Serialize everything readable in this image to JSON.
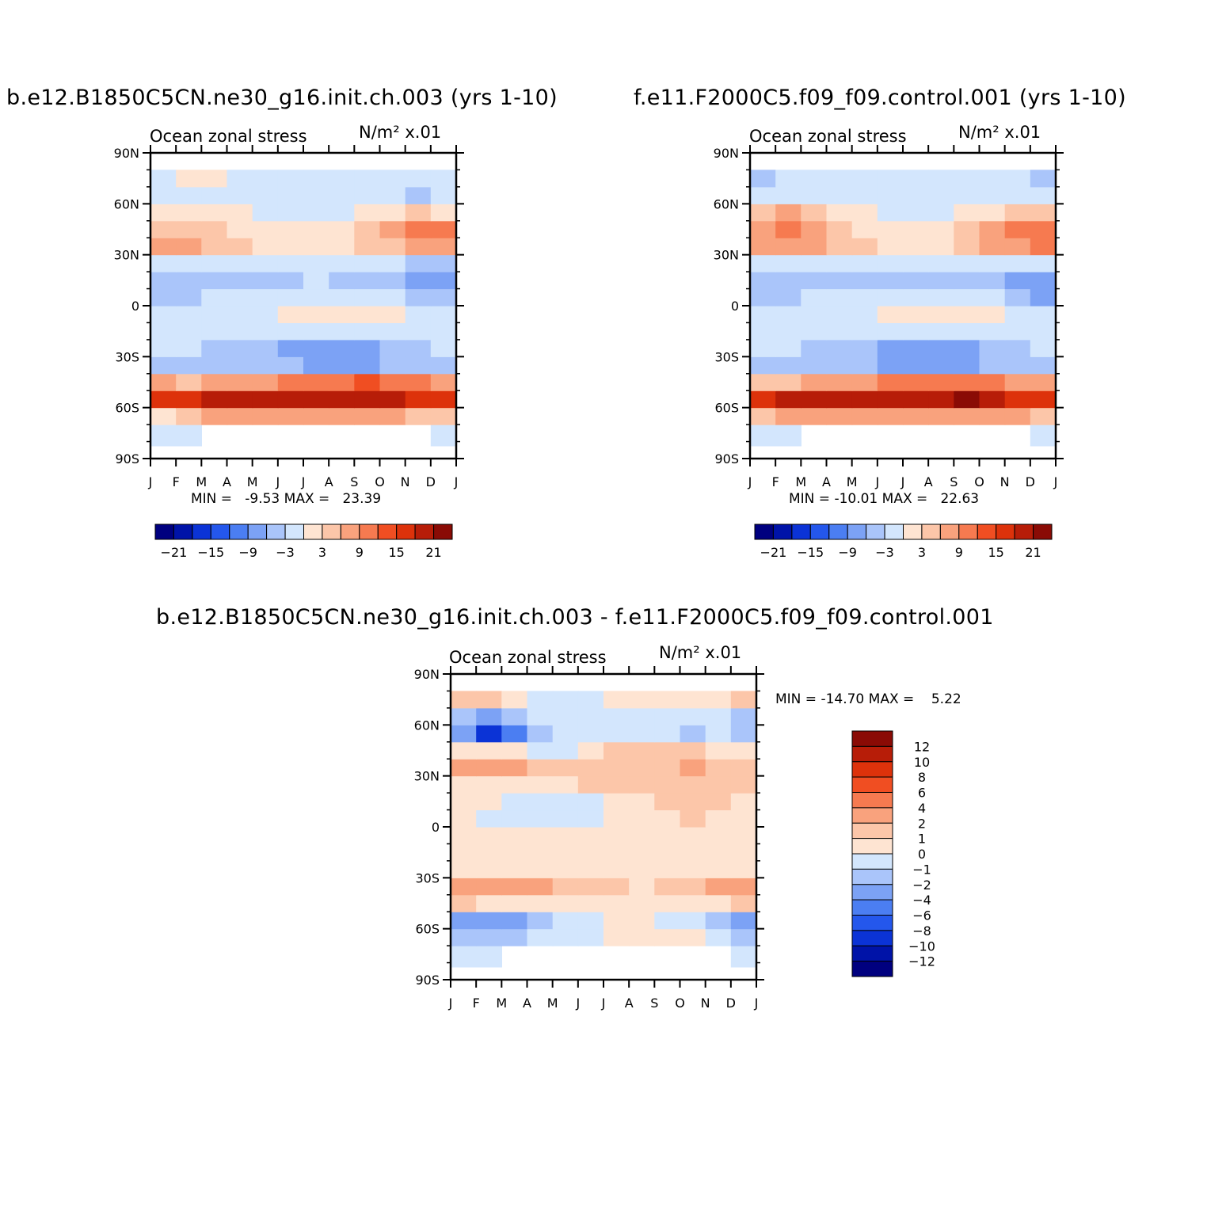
{
  "colors": {
    "palette": [
      "#00007f",
      "#0013a8",
      "#0b33d6",
      "#2457ec",
      "#4b7ef2",
      "#7ca2f5",
      "#aac5fa",
      "#d3e6fd",
      "#fee4d2",
      "#fcc6a9",
      "#f9a27d",
      "#f67a50",
      "#f04e22",
      "#dd320b",
      "#b71d08",
      "#8a0b05"
    ]
  },
  "charts": [
    {
      "title": "b.e12.B1850C5CN.ne30_g16.init.ch.003 (yrs 1-10)",
      "left_label": "Ocean zonal stress",
      "units": "N/m² x.01",
      "stats": "MIN =   -9.53 MAX =   23.39",
      "colorbar_labels": [
        "-21",
        "-15",
        "-9",
        "-3",
        "3",
        "9",
        "15",
        "21"
      ]
    },
    {
      "title": "f.e11.F2000C5.f09_f09.control.001 (yrs 1-10)",
      "left_label": "Ocean zonal stress",
      "units": "N/m² x.01",
      "stats": "MIN = -10.01 MAX =   22.63",
      "colorbar_labels": [
        "-21",
        "-15",
        "-9",
        "-3",
        "3",
        "9",
        "15",
        "21"
      ]
    },
    {
      "title": "b.e12.B1850C5CN.ne30_g16.init.ch.003 - f.e11.F2000C5.f09_f09.control.001",
      "left_label": "Ocean zonal stress",
      "units": "N/m² x.01",
      "stats": "MIN = -14.70 MAX =    5.22",
      "colorbar_labels": [
        "12",
        "10",
        "8",
        "6",
        "4",
        "2",
        "1",
        "0",
        "-1",
        "-2",
        "-4",
        "-6",
        "-8",
        "-10",
        "-12"
      ]
    }
  ],
  "chart_data": [
    {
      "type": "heatmap",
      "title": "b.e12.B1850C5CN.ne30_g16.init.ch.003 (yrs 1-10)",
      "variable": "Ocean zonal stress",
      "units": "N/m² x.01",
      "x_tick_labels": [
        "J",
        "F",
        "M",
        "A",
        "M",
        "J",
        "J",
        "A",
        "S",
        "O",
        "N",
        "D",
        "J"
      ],
      "y_tick_labels": [
        "90N",
        "60N",
        "30N",
        "0",
        "30S",
        "60S",
        "90S"
      ],
      "ylim": [
        -90,
        90
      ],
      "contour_levels": [
        -21,
        -18,
        -15,
        -12,
        -9,
        -6,
        -3,
        0,
        3,
        6,
        9,
        12,
        15,
        18,
        21
      ],
      "min": -9.53,
      "max": 23.39,
      "latitudes": [
        -90,
        -75,
        -65,
        -55,
        -45,
        -35,
        -25,
        -15,
        -5,
        5,
        15,
        25,
        35,
        45,
        55,
        65,
        75,
        85
      ],
      "months": [
        "J",
        "F",
        "M",
        "A",
        "M",
        "J",
        "J",
        "A",
        "S",
        "O",
        "N",
        "D"
      ],
      "values": [
        [
          null,
          null,
          null,
          null,
          null,
          null,
          null,
          null,
          null,
          null,
          null,
          null
        ],
        [
          -1,
          -1,
          null,
          null,
          null,
          null,
          null,
          null,
          null,
          null,
          null,
          -1
        ],
        [
          2,
          4,
          6,
          7,
          7,
          7,
          6,
          6,
          6,
          6,
          5,
          3
        ],
        [
          15,
          16,
          18,
          19,
          19,
          19,
          19,
          19,
          20,
          19,
          17,
          16
        ],
        [
          6,
          5,
          6,
          7,
          8,
          9,
          10,
          11,
          12,
          11,
          9,
          7
        ],
        [
          -4,
          -4,
          -5,
          -5,
          -6,
          -6,
          -7,
          -7,
          -7,
          -6,
          -5,
          -4
        ],
        [
          -3,
          -3,
          -4,
          -5,
          -6,
          -7,
          -7,
          -7,
          -7,
          -6,
          -4,
          -3
        ],
        [
          -2,
          -2,
          -2,
          -3,
          -3,
          -3,
          -3,
          -3,
          -3,
          -2,
          -2,
          -2
        ],
        [
          -1,
          -1,
          -1,
          -1,
          -1,
          0,
          1,
          1,
          1,
          0,
          -1,
          -1
        ],
        [
          -4,
          -4,
          -3,
          -3,
          -2,
          -2,
          -1,
          -1,
          -2,
          -3,
          -5,
          -6
        ],
        [
          -6,
          -6,
          -5,
          -4,
          -4,
          -4,
          -3,
          -4,
          -5,
          -6,
          -7,
          -7
        ],
        [
          -3,
          -3,
          -3,
          -2,
          -2,
          -2,
          -2,
          -2,
          -3,
          -3,
          -4,
          -4
        ],
        [
          7,
          6,
          5,
          4,
          2,
          1,
          1,
          2,
          3,
          5,
          7,
          8
        ],
        [
          5,
          4,
          3,
          2,
          1,
          1,
          1,
          2,
          4,
          8,
          11,
          9
        ],
        [
          0,
          1,
          1,
          0,
          -1,
          -1,
          -1,
          -1,
          0,
          1,
          3,
          2
        ],
        [
          -2,
          -2,
          -1,
          -2,
          -2,
          -1,
          -1,
          -2,
          -2,
          -3,
          -4,
          -3
        ],
        [
          -1,
          1,
          1,
          -1,
          -1,
          -1,
          -1,
          -1,
          -1,
          -2,
          -3,
          -2
        ],
        [
          null,
          null,
          null,
          null,
          null,
          null,
          null,
          null,
          null,
          null,
          null,
          null
        ]
      ]
    },
    {
      "type": "heatmap",
      "title": "f.e11.F2000C5.f09_f09.control.001 (yrs 1-10)",
      "variable": "Ocean zonal stress",
      "units": "N/m² x.01",
      "x_tick_labels": [
        "J",
        "F",
        "M",
        "A",
        "M",
        "J",
        "J",
        "A",
        "S",
        "O",
        "N",
        "D",
        "J"
      ],
      "y_tick_labels": [
        "90N",
        "60N",
        "30N",
        "0",
        "30S",
        "60S",
        "90S"
      ],
      "ylim": [
        -90,
        90
      ],
      "contour_levels": [
        -21,
        -18,
        -15,
        -12,
        -9,
        -6,
        -3,
        0,
        3,
        6,
        9,
        12,
        15,
        18,
        21
      ],
      "min": -10.01,
      "max": 22.63,
      "latitudes": [
        -90,
        -75,
        -65,
        -55,
        -45,
        -35,
        -25,
        -15,
        -5,
        5,
        15,
        25,
        35,
        45,
        55,
        65,
        75,
        85
      ],
      "months": [
        "J",
        "F",
        "M",
        "A",
        "M",
        "J",
        "J",
        "A",
        "S",
        "O",
        "N",
        "D"
      ],
      "values": [
        [
          null,
          null,
          null,
          null,
          null,
          null,
          null,
          null,
          null,
          null,
          null,
          null
        ],
        [
          -1,
          -1,
          null,
          null,
          null,
          null,
          null,
          null,
          null,
          null,
          null,
          -1
        ],
        [
          4,
          6,
          7,
          8,
          8,
          8,
          8,
          8,
          8,
          8,
          7,
          5
        ],
        [
          16,
          18,
          19,
          19,
          19,
          18,
          18,
          19,
          21,
          20,
          17,
          16
        ],
        [
          5,
          5,
          6,
          7,
          8,
          9,
          10,
          11,
          11,
          10,
          8,
          6
        ],
        [
          -5,
          -5,
          -5,
          -6,
          -6,
          -7,
          -7,
          -7,
          -7,
          -6,
          -5,
          -5
        ],
        [
          -3,
          -3,
          -5,
          -6,
          -6,
          -7,
          -8,
          -8,
          -7,
          -6,
          -4,
          -3
        ],
        [
          -2,
          -2,
          -2,
          -2,
          -3,
          -3,
          -3,
          -3,
          -3,
          -2,
          -2,
          -2
        ],
        [
          -1,
          -1,
          -1,
          -1,
          -1,
          0,
          1,
          1,
          1,
          0,
          -1,
          -1
        ],
        [
          -4,
          -4,
          -3,
          -3,
          -2,
          -2,
          -1,
          -2,
          -2,
          -3,
          -5,
          -7
        ],
        [
          -6,
          -6,
          -6,
          -5,
          -4,
          -4,
          -4,
          -4,
          -5,
          -6,
          -7,
          -7
        ],
        [
          -3,
          -3,
          -3,
          -2,
          -2,
          -2,
          -2,
          -2,
          -2,
          -3,
          -3,
          -3
        ],
        [
          8,
          8,
          7,
          5,
          3,
          1,
          1,
          1,
          3,
          6,
          8,
          9
        ],
        [
          8,
          9,
          7,
          4,
          2,
          1,
          1,
          2,
          4,
          7,
          11,
          10
        ],
        [
          3,
          6,
          3,
          1,
          0,
          -1,
          -1,
          -1,
          0,
          1,
          3,
          3
        ],
        [
          -3,
          -2,
          -2,
          -2,
          -2,
          -2,
          -1,
          -1,
          -1,
          -2,
          -3,
          -3
        ],
        [
          -4,
          -3,
          -2,
          -2,
          -1,
          -1,
          -1,
          -1,
          -2,
          -2,
          -3,
          -4
        ],
        [
          null,
          null,
          null,
          null,
          null,
          null,
          null,
          null,
          null,
          null,
          null,
          null
        ]
      ]
    },
    {
      "type": "heatmap",
      "title": "b.e12.B1850C5CN.ne30_g16.init.ch.003 - f.e11.F2000C5.f09_f09.control.001",
      "variable": "Ocean zonal stress",
      "units": "N/m² x.01",
      "x_tick_labels": [
        "J",
        "F",
        "M",
        "A",
        "M",
        "J",
        "J",
        "A",
        "S",
        "O",
        "N",
        "D",
        "J"
      ],
      "y_tick_labels": [
        "90N",
        "60N",
        "30N",
        "0",
        "30S",
        "60S",
        "90S"
      ],
      "ylim": [
        -90,
        90
      ],
      "contour_levels": [
        -12,
        -10,
        -8,
        -6,
        -4,
        -2,
        -1,
        0,
        1,
        2,
        4,
        6,
        8,
        10,
        12
      ],
      "min": -14.7,
      "max": 5.22,
      "latitudes": [
        -90,
        -75,
        -65,
        -55,
        -45,
        -35,
        -25,
        -15,
        -5,
        5,
        15,
        25,
        35,
        45,
        55,
        65,
        75,
        85
      ],
      "months": [
        "J",
        "F",
        "M",
        "A",
        "M",
        "J",
        "J",
        "A",
        "S",
        "O",
        "N",
        "D"
      ],
      "values": [
        [
          null,
          null,
          null,
          null,
          null,
          null,
          null,
          null,
          null,
          null,
          null,
          null
        ],
        [
          -1,
          -1,
          null,
          null,
          null,
          null,
          null,
          null,
          null,
          null,
          null,
          -1
        ],
        [
          -2,
          -2,
          -2,
          -1,
          -1,
          -1,
          0,
          0.5,
          0.5,
          0,
          -1,
          -2
        ],
        [
          -4,
          -4,
          -3,
          -2,
          -1,
          -1,
          0,
          0,
          -1,
          -1,
          -2,
          -4
        ],
        [
          1,
          0.5,
          0.5,
          0.5,
          0.5,
          0.5,
          0.5,
          0.5,
          0.5,
          0.5,
          0.5,
          1
        ],
        [
          2,
          2,
          2,
          2,
          1,
          1,
          1,
          0.5,
          1,
          1,
          2,
          3
        ],
        [
          0.5,
          0.5,
          0.5,
          0.5,
          0.5,
          0.5,
          0.5,
          0.5,
          0.5,
          0.5,
          0.5,
          0.5
        ],
        [
          0.5,
          0.5,
          0.5,
          0.5,
          0.5,
          0.5,
          0.5,
          0.5,
          0.5,
          0.5,
          0.5,
          0.5
        ],
        [
          0.5,
          0.5,
          0.5,
          0.5,
          0.5,
          0.5,
          0.5,
          0.5,
          0.5,
          0.5,
          0.5,
          0.5
        ],
        [
          0.5,
          -1,
          -1,
          -1,
          -1,
          -0.5,
          0.5,
          0.5,
          0.5,
          1,
          0.5,
          0.5
        ],
        [
          0.5,
          0.5,
          -1,
          -1,
          -1,
          -0.5,
          0.5,
          0.5,
          1,
          1,
          1,
          0.5
        ],
        [
          0.5,
          0.5,
          0.5,
          0.5,
          0.5,
          1,
          1,
          1,
          1,
          1,
          1,
          1
        ],
        [
          2,
          2,
          2,
          1,
          1,
          1,
          1,
          1,
          1,
          2,
          1,
          1
        ],
        [
          0.5,
          0.5,
          0.5,
          -0.5,
          -0.5,
          0.5,
          1,
          1,
          1,
          1,
          0.5,
          0.5
        ],
        [
          -4,
          -9,
          -5,
          -2,
          -1,
          -1,
          -1,
          -1,
          -1,
          -2,
          -1,
          -2
        ],
        [
          -2,
          -3,
          -2,
          -1,
          -1,
          -1,
          -1,
          -1,
          -1,
          -1,
          -1,
          -2
        ],
        [
          1,
          1,
          0.5,
          -1,
          -1,
          -0.5,
          0.5,
          0.5,
          0.5,
          0.5,
          0.5,
          1
        ],
        [
          null,
          null,
          null,
          null,
          null,
          null,
          null,
          null,
          null,
          null,
          null,
          null
        ]
      ]
    }
  ]
}
